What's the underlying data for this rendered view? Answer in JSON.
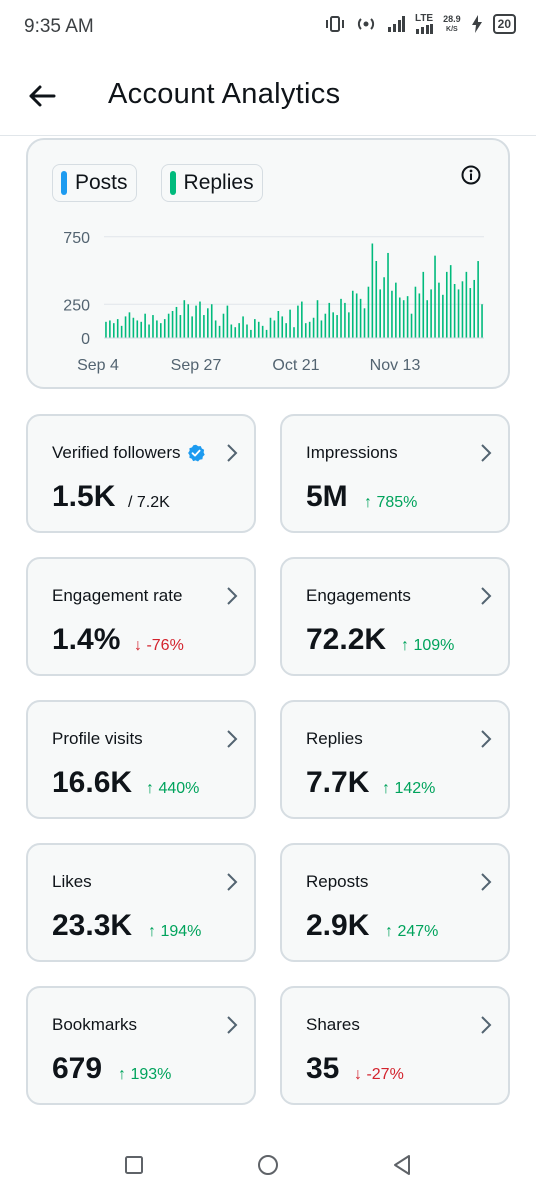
{
  "status_bar": {
    "time": "9:35 AM",
    "network": "LTE",
    "speed_value": "28.9",
    "speed_unit": "K/S",
    "battery": "20",
    "icons": [
      "vibrate-icon",
      "hotspot-icon",
      "signal-icon",
      "lte-signal-icon",
      "charging-icon"
    ]
  },
  "header": {
    "title": "Account Analytics",
    "back_icon": "arrow-left-icon"
  },
  "chart": {
    "legend": [
      {
        "label": "Posts",
        "color": "#1d9bf0"
      },
      {
        "label": "Replies",
        "color": "#00ba7c"
      }
    ],
    "info_icon": "info-icon"
  },
  "chart_data": {
    "type": "bar",
    "series": [
      {
        "name": "Replies",
        "color": "#00ba7c",
        "values": [
          120,
          130,
          110,
          140,
          90,
          160,
          190,
          150,
          130,
          120,
          180,
          100,
          170,
          130,
          110,
          140,
          180,
          200,
          230,
          170,
          280,
          250,
          160,
          240,
          270,
          170,
          220,
          250,
          130,
          90,
          180,
          240,
          100,
          80,
          110,
          160,
          100,
          60,
          140,
          120,
          90,
          60,
          150,
          130,
          200,
          160,
          110,
          210,
          80,
          240,
          270,
          110,
          120,
          150,
          280,
          130,
          180,
          260,
          190,
          170,
          290,
          260,
          190,
          350,
          330,
          290,
          220,
          380,
          700,
          570,
          360,
          450,
          630,
          350,
          410,
          300,
          280,
          310,
          180,
          380,
          330,
          490,
          280,
          360,
          610,
          410,
          320,
          490,
          540,
          400,
          360,
          420,
          490,
          370,
          430,
          570,
          250
        ]
      }
    ],
    "x_tick_labels": [
      "Sep 4",
      "Sep 27",
      "Oct 21",
      "Nov 13"
    ],
    "y_tick_labels": [
      "0",
      "250",
      "750"
    ],
    "ylim": [
      0,
      800
    ],
    "grid": true
  },
  "stats": [
    {
      "label": "Verified followers",
      "value": "1.5K",
      "extra": "/ 7.2K",
      "trend": "none",
      "badge": true
    },
    {
      "label": "Impressions",
      "value": "5M",
      "extra": "↑ 785%",
      "trend": "up"
    },
    {
      "label": "Engagement rate",
      "value": "1.4%",
      "extra": "↓ -76%",
      "trend": "down"
    },
    {
      "label": "Engagements",
      "value": "72.2K",
      "extra": "↑ 109%",
      "trend": "up"
    },
    {
      "label": "Profile visits",
      "value": "16.6K",
      "extra": "↑ 440%",
      "trend": "up"
    },
    {
      "label": "Replies",
      "value": "7.7K",
      "extra": "↑ 142%",
      "trend": "up"
    },
    {
      "label": "Likes",
      "value": "23.3K",
      "extra": "↑ 194%",
      "trend": "up"
    },
    {
      "label": "Reposts",
      "value": "2.9K",
      "extra": "↑ 247%",
      "trend": "up"
    },
    {
      "label": "Bookmarks",
      "value": "679",
      "extra": "↑ 193%",
      "trend": "up"
    },
    {
      "label": "Shares",
      "value": "35",
      "extra": "↓ -27%",
      "trend": "down"
    }
  ],
  "colors": {
    "up": "#00a35c",
    "down": "#d3232d",
    "verified": "#1d9bf0"
  },
  "navbar": {
    "icons": [
      "recents-square-icon",
      "home-circle-icon",
      "back-triangle-icon"
    ]
  }
}
